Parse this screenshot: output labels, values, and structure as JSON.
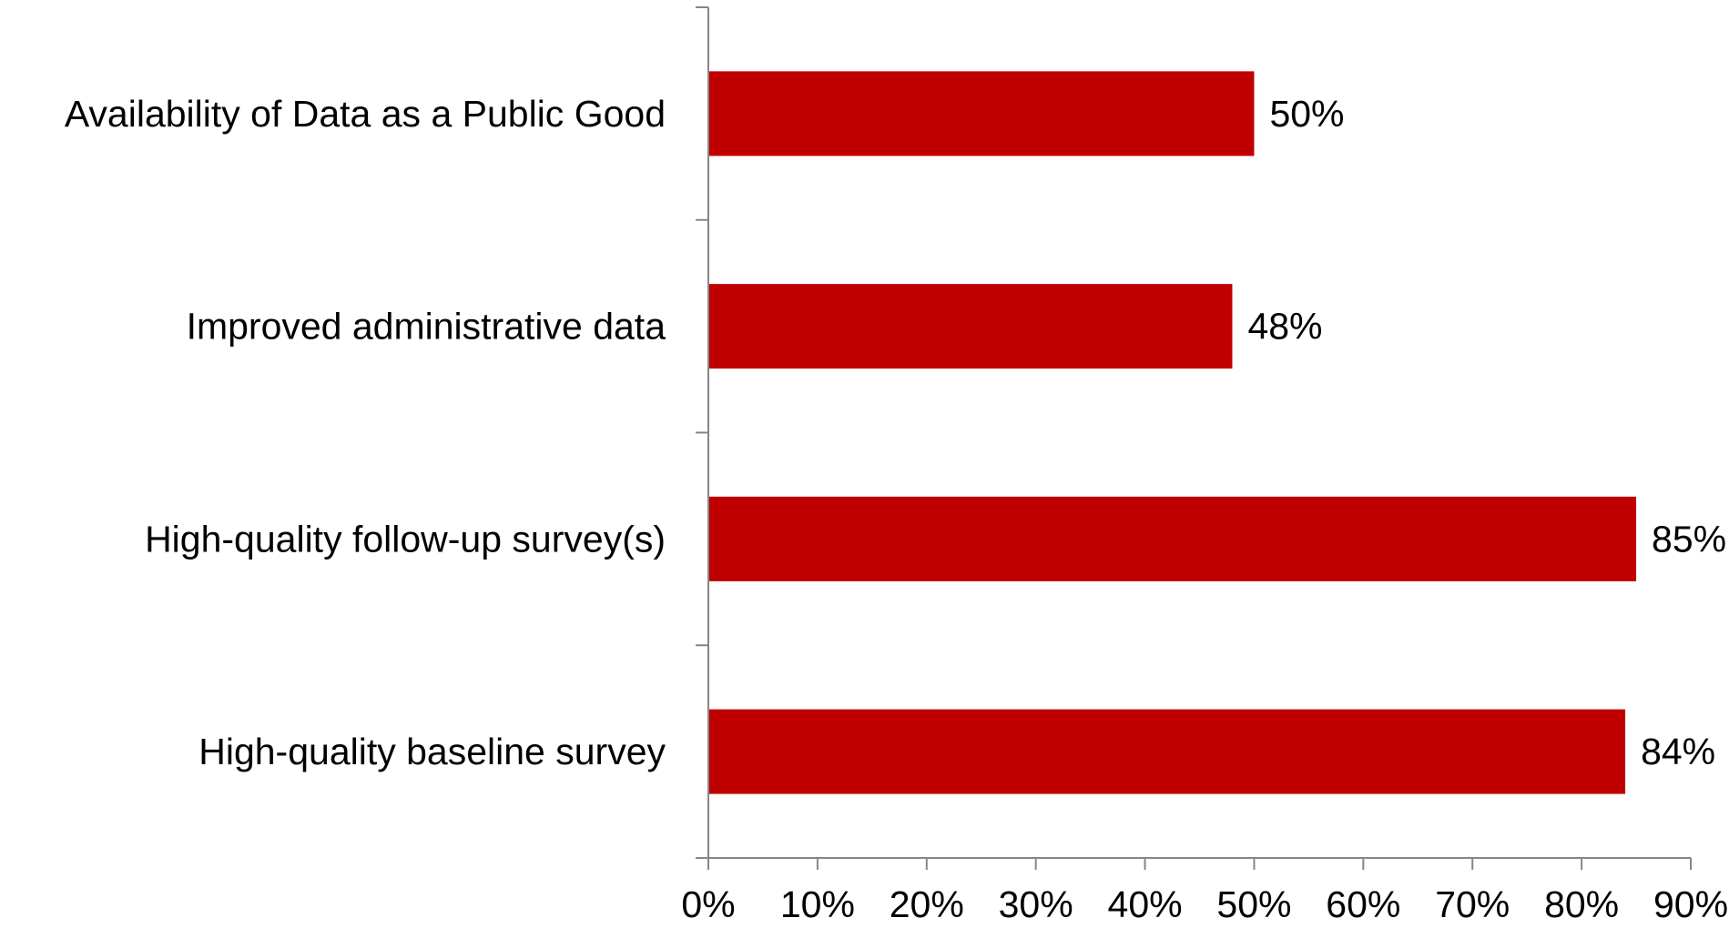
{
  "chart_data": {
    "type": "bar",
    "orientation": "horizontal",
    "categories": [
      "Availability of Data as a Public Good",
      "Improved administrative data",
      "High-quality follow-up survey(s)",
      "High-quality baseline survey"
    ],
    "values": [
      50,
      48,
      85,
      84
    ],
    "data_labels": [
      "50%",
      "48%",
      "85%",
      "84%"
    ],
    "x_ticks": [
      0,
      10,
      20,
      30,
      40,
      50,
      60,
      70,
      80,
      90
    ],
    "x_tick_labels": [
      "0%",
      "10%",
      "20%",
      "30%",
      "40%",
      "50%",
      "60%",
      "70%",
      "80%",
      "90%"
    ],
    "xlim": [
      0,
      90
    ],
    "title": "",
    "xlabel": "",
    "ylabel": "",
    "grid": false,
    "legend": "none",
    "colors": {
      "bar": "#C00000",
      "axis": "#868686",
      "text": "#000000",
      "background": "#FFFFFF"
    }
  }
}
